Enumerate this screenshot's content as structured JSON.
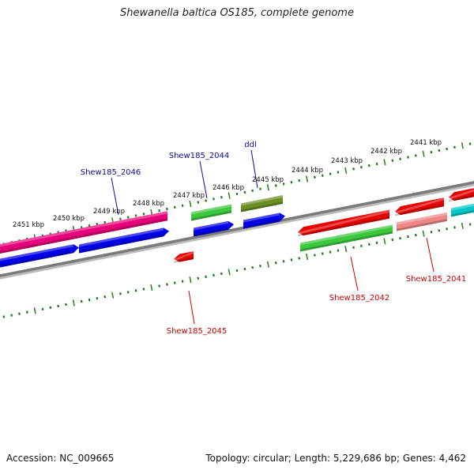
{
  "title": "Shewanella baltica OS185, complete genome",
  "accession_text": "Accession: NC_009665",
  "summary_text": "Topology: circular; Length: 5,229,686 bp; Genes: 4,462",
  "colors": {
    "backbone": "#7a7a7a",
    "tick_major": "#2f8a1e",
    "tick_minor": "#1a7a1a",
    "label_forward": "#0a0aa0",
    "label_reverse": "#cc0000"
  },
  "axis": {
    "tick_labels": [
      "2441 kbp",
      "2442 kbp",
      "2443 kbp",
      "2444 kbp",
      "2445 kbp",
      "2446 kbp",
      "2447 kbp",
      "2448 kbp",
      "2449 kbp",
      "2450 kbp",
      "2451 kbp"
    ]
  },
  "gene_labels": {
    "forward": [
      "Shew185_2046",
      "Shew185_2044",
      "ddl"
    ],
    "reverse": [
      "Shew185_2045",
      "Shew185_2042",
      "Shew185_2041"
    ]
  },
  "feature_colors": {
    "forward_cds": "#0000e6",
    "reverse_cds": "#e60000",
    "green": "#3cc83c",
    "olive": "#6b8e23",
    "pink": "#e6007a",
    "salmon": "#ee8888",
    "cyan": "#00c8c8"
  }
}
